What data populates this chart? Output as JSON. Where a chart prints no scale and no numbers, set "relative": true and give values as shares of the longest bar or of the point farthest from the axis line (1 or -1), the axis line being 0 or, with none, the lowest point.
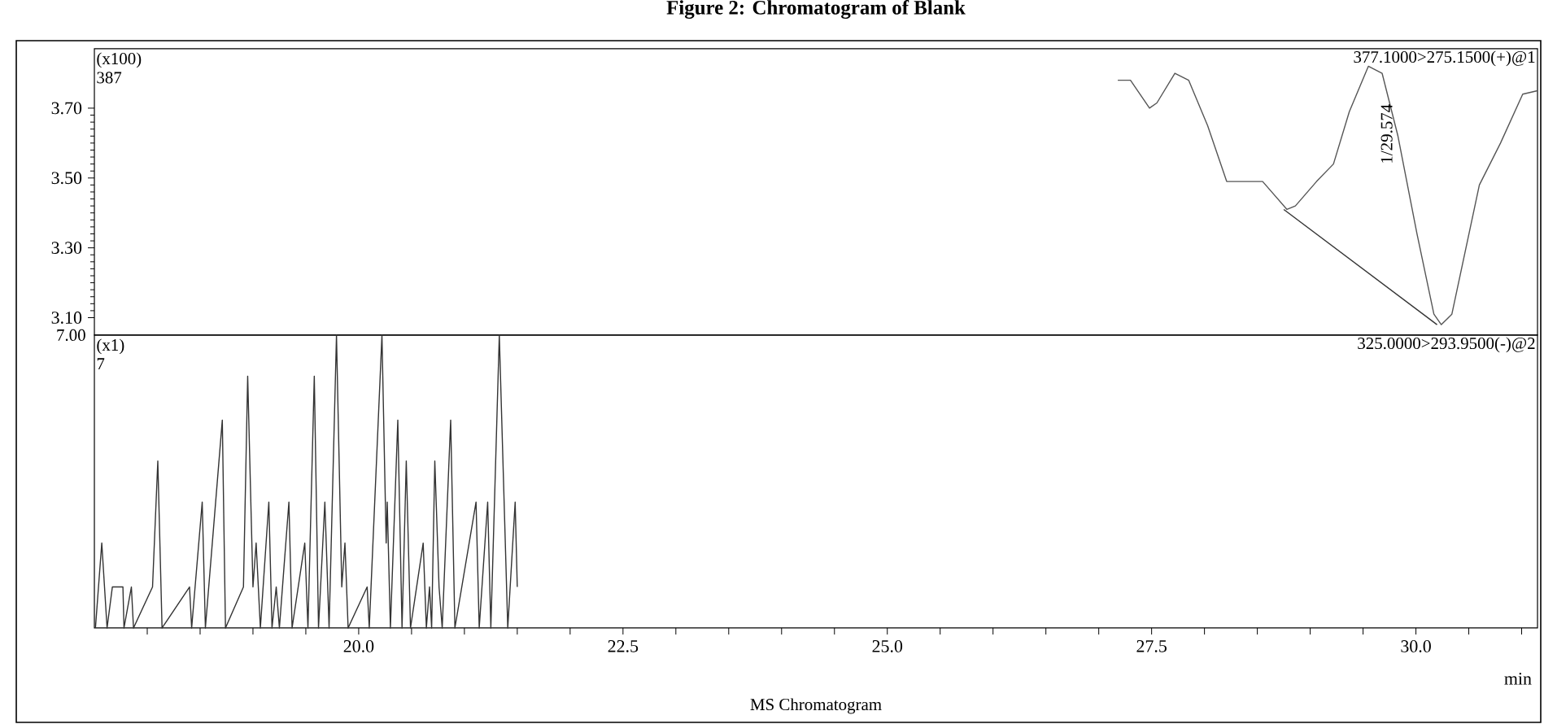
{
  "chart_data": [
    {
      "type": "line",
      "title": "Figure 2: Chromatogram of Blank",
      "xlim": [
        17.5,
        31.15
      ],
      "ylim": [
        3.05,
        3.87
      ],
      "yticks": [
        {
          "value": 3.1,
          "label": "3.10"
        },
        {
          "value": 3.3,
          "label": "3.30"
        },
        {
          "value": 3.5,
          "label": "3.50"
        },
        {
          "value": 3.7,
          "label": "3.70"
        }
      ],
      "tick_labels": "y",
      "series": [
        {
          "color": "#555555",
          "x": [
            27.18,
            27.3,
            27.48,
            27.55,
            27.72,
            27.85,
            28.03,
            28.21,
            28.55,
            28.78,
            28.86,
            29.06,
            29.22,
            29.37,
            29.55,
            29.68,
            29.83,
            30.01,
            30.17,
            30.24,
            30.34,
            30.6,
            30.8,
            31.01,
            31.15
          ],
          "values": [
            3.78,
            3.78,
            3.7,
            3.715,
            3.8,
            3.78,
            3.65,
            3.49,
            3.49,
            3.41,
            3.42,
            3.49,
            3.54,
            3.69,
            3.82,
            3.8,
            3.62,
            3.34,
            3.11,
            3.08,
            3.11,
            3.48,
            3.6,
            3.74,
            3.75
          ]
        },
        {
          "color": "#333333",
          "x": [
            28.75,
            30.2
          ],
          "values": [
            3.41,
            3.08
          ]
        }
      ],
      "annotations": [
        "(x100)",
        "387",
        "377.1000>275.1500(+)@1",
        {
          "text": "1/29.574",
          "x": 29.574,
          "y": 3.82
        }
      ]
    },
    {
      "type": "line",
      "xlabel": "min",
      "xlim": [
        17.5,
        31.15
      ],
      "relative": true,
      "xticks": [
        {
          "value": 18,
          "label": null
        },
        {
          "value": 18.5,
          "label": null
        },
        {
          "value": 19,
          "label": null
        },
        {
          "value": 19.5,
          "label": null
        },
        {
          "value": 20,
          "label": "20.0"
        },
        {
          "value": 20.5,
          "label": null
        },
        {
          "value": 21,
          "label": null
        },
        {
          "value": 21.5,
          "label": null
        },
        {
          "value": 22,
          "label": null
        },
        {
          "value": 22.5,
          "label": "22.5"
        },
        {
          "value": 23,
          "label": null
        },
        {
          "value": 23.5,
          "label": null
        },
        {
          "value": 24,
          "label": null
        },
        {
          "value": 24.5,
          "label": null
        },
        {
          "value": 25,
          "label": "25.0"
        },
        {
          "value": 25.5,
          "label": null
        },
        {
          "value": 26,
          "label": null
        },
        {
          "value": 26.5,
          "label": null
        },
        {
          "value": 27,
          "label": null
        },
        {
          "value": 27.5,
          "label": "27.5"
        },
        {
          "value": 28,
          "label": null
        },
        {
          "value": 28.5,
          "label": null
        },
        {
          "value": 29,
          "label": null
        },
        {
          "value": 29.5,
          "label": null
        },
        {
          "value": 30,
          "label": "30.0"
        },
        {
          "value": 30.5,
          "label": null
        },
        {
          "value": 31,
          "label": null
        }
      ],
      "series": [
        {
          "color": "#333333",
          "x": [
            17.51,
            17.57,
            17.62,
            17.67,
            17.77,
            17.78,
            17.85,
            17.87,
            18.05,
            18.1,
            18.14,
            18.4,
            18.42,
            18.52,
            18.55,
            18.71,
            18.74,
            18.91,
            18.95,
            19.0,
            19.03,
            19.07,
            19.15,
            19.18,
            19.22,
            19.25,
            19.34,
            19.37,
            19.49,
            19.52,
            19.58,
            19.62,
            19.68,
            19.72,
            19.79,
            19.84,
            19.87,
            19.9,
            20.08,
            20.1,
            20.22,
            20.26,
            20.27,
            20.3,
            20.37,
            20.41,
            20.45,
            20.49,
            20.61,
            20.64,
            20.67,
            20.69,
            20.72,
            20.76,
            20.79,
            20.87,
            20.91,
            21.11,
            21.14,
            21.22,
            21.25,
            21.33,
            21.41,
            21.48,
            21.5
          ],
          "values": [
            0,
            0.29,
            0,
            0.14,
            0.14,
            0,
            0.14,
            0,
            0.14,
            0.57,
            0,
            0.14,
            0,
            0.43,
            0,
            0.71,
            0,
            0.14,
            0.86,
            0.14,
            0.29,
            0,
            0.43,
            0,
            0.14,
            0,
            0.43,
            0,
            0.29,
            0,
            0.86,
            0,
            0.43,
            0,
            1,
            0.14,
            0.29,
            0,
            0.14,
            0,
            1,
            0.29,
            0.43,
            0,
            0.71,
            0,
            0.57,
            0,
            0.29,
            0,
            0.14,
            0,
            0.57,
            0.14,
            0,
            0.71,
            0,
            0.43,
            0,
            0.43,
            0,
            1,
            0,
            0.43,
            0.14
          ]
        }
      ],
      "annotations": [
        "(x1)",
        "7",
        "325.0000>293.9500(-)@2",
        "MS Chromatogram",
        "7.00"
      ]
    }
  ]
}
